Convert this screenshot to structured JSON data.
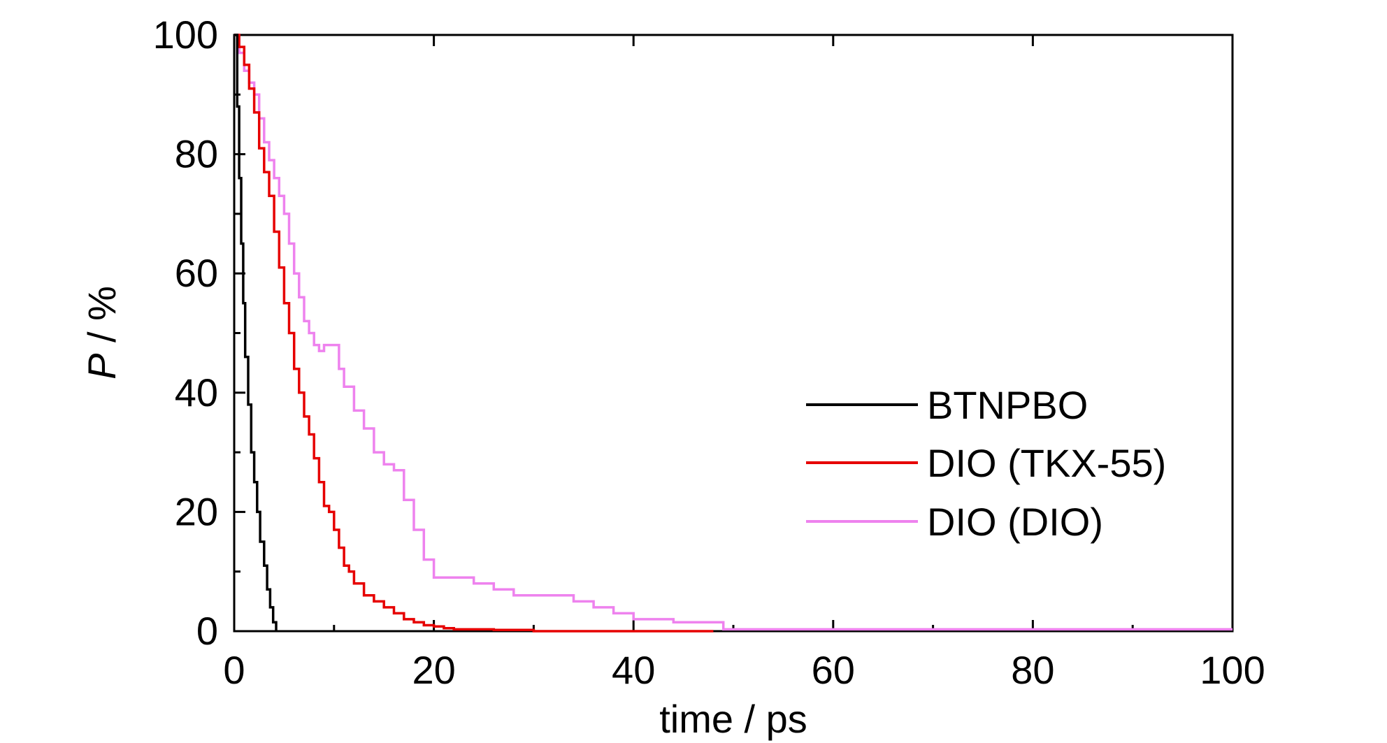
{
  "chart_data": {
    "type": "line",
    "title": "",
    "xlabel": "time / ps",
    "ylabel_italic": "P",
    "ylabel_rest": " / %",
    "xlim": [
      0,
      100
    ],
    "ylim": [
      0,
      100
    ],
    "xticks": [
      0,
      20,
      40,
      60,
      80,
      100
    ],
    "yticks": [
      0,
      20,
      40,
      60,
      80,
      100
    ],
    "grid": false,
    "legend_position": "center-right",
    "series": [
      {
        "name": "BTNPBO",
        "color": "#000000",
        "x": [
          0,
          0.3,
          0.5,
          0.7,
          0.9,
          1.1,
          1.4,
          1.7,
          2.0,
          2.3,
          2.6,
          3.0,
          3.3,
          3.6,
          3.9,
          4.2
        ],
        "y": [
          100,
          88,
          76,
          65,
          55,
          46,
          38,
          30,
          25,
          20,
          15,
          11,
          7,
          4,
          1.5,
          0
        ]
      },
      {
        "name": "DIO (TKX-55)",
        "color": "#e60000",
        "x": [
          0,
          0.5,
          1.0,
          1.5,
          2.0,
          2.5,
          3.0,
          3.5,
          4.0,
          4.5,
          5.0,
          5.5,
          6.0,
          6.5,
          7.0,
          7.5,
          8.0,
          8.5,
          9.0,
          9.5,
          10.0,
          10.5,
          11.0,
          11.5,
          12.0,
          13.0,
          14.0,
          15.0,
          16.0,
          17.0,
          18.0,
          19.0,
          20.0,
          21.0,
          22.0,
          24.0,
          26.0,
          30.0,
          40.0,
          48.0
        ],
        "y": [
          100,
          98,
          95,
          91,
          87,
          81,
          77,
          73,
          67,
          61,
          55,
          50,
          44,
          40,
          36,
          33,
          29,
          25,
          21,
          20,
          17,
          14,
          11,
          10,
          8,
          6,
          5,
          4,
          3,
          2,
          1.5,
          1,
          0.8,
          0.5,
          0.3,
          0.3,
          0.2,
          0,
          0,
          0
        ]
      },
      {
        "name": "DIO (DIO)",
        "color": "#ee82ee",
        "x": [
          0,
          0.5,
          1.0,
          1.5,
          2.0,
          2.5,
          3.0,
          3.5,
          4.0,
          4.5,
          5.0,
          5.5,
          6.0,
          6.5,
          7.0,
          7.5,
          8.0,
          8.5,
          9.0,
          9.5,
          10.0,
          10.5,
          11.0,
          12.0,
          13.0,
          14.0,
          15.0,
          16.0,
          17.0,
          18.0,
          19.0,
          20.0,
          21.0,
          22.0,
          24.0,
          26.0,
          28.0,
          30.0,
          32.0,
          34.0,
          36.0,
          38.0,
          40.0,
          44.0,
          48.0,
          49.0,
          55.0,
          58.0,
          58.3,
          70.0,
          100.0
        ],
        "y": [
          100,
          97,
          94,
          92,
          90,
          86,
          82,
          79,
          76,
          73,
          70,
          65,
          60,
          56,
          52,
          50,
          48,
          47,
          48,
          48,
          48,
          44,
          41,
          37,
          34,
          30,
          28,
          27,
          22,
          17,
          12,
          9,
          9,
          9,
          8,
          7,
          6,
          6,
          6,
          5,
          4,
          3,
          2,
          1.5,
          1.5,
          0.3,
          0.3,
          0.3,
          0.3,
          0.3,
          0.3
        ]
      }
    ]
  }
}
